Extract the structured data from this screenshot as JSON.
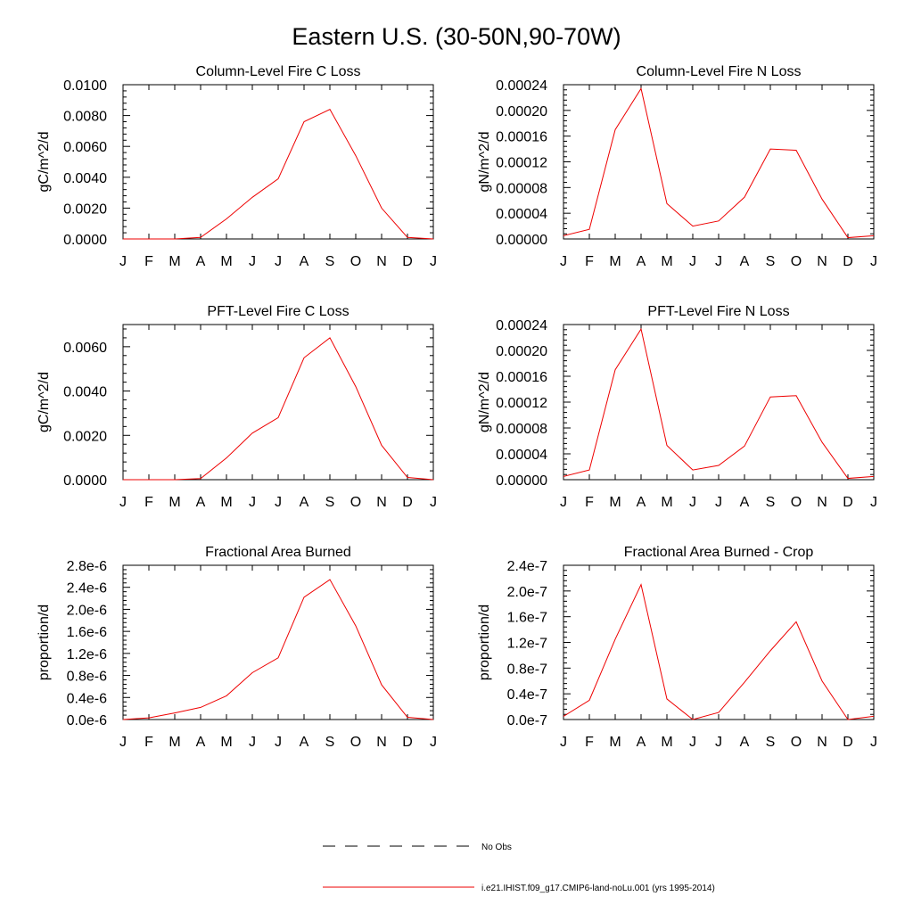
{
  "title": "Eastern U.S. (30-50N,90-70W)",
  "months": [
    "J",
    "F",
    "M",
    "A",
    "M",
    "J",
    "J",
    "A",
    "S",
    "O",
    "N",
    "D",
    "J"
  ],
  "line_color": "#ee0000",
  "legend": {
    "placement": "bottom-center",
    "entries": [
      {
        "label": "No Obs",
        "style": "dashed",
        "color": "#000000"
      },
      {
        "label": "i.e21.IHIST.f09_g17.CMIP6-land-noLu.001 (yrs 1995-2014)",
        "style": "solid",
        "color": "#ee0000"
      }
    ]
  },
  "chart_data": [
    {
      "type": "line",
      "title": "Column-Level Fire C Loss",
      "ylabel": "gC/m^2/d",
      "xlabel": "",
      "ylim": [
        0,
        0.01
      ],
      "yticks": [
        0,
        0.002,
        0.004,
        0.006,
        0.008,
        0.01
      ],
      "ytick_labels": [
        "0.0000",
        "0.0020",
        "0.0040",
        "0.0060",
        "0.0080",
        "0.0100"
      ],
      "categories": [
        "J",
        "F",
        "M",
        "A",
        "M",
        "J",
        "J",
        "A",
        "S",
        "O",
        "N",
        "D",
        "J"
      ],
      "series": [
        {
          "values": [
            0,
            0,
            0,
            0.0001,
            0.0013,
            0.0027,
            0.0039,
            0.0076,
            0.0084,
            0.0054,
            0.002,
            0.0001,
            0
          ]
        }
      ]
    },
    {
      "type": "line",
      "title": "Column-Level Fire N Loss",
      "ylabel": "gN/m^2/d",
      "xlabel": "",
      "ylim": [
        0,
        0.00024
      ],
      "yticks": [
        0,
        4e-05,
        8e-05,
        0.00012,
        0.00016,
        0.0002,
        0.00024
      ],
      "ytick_labels": [
        "0.00000",
        "0.00004",
        "0.00008",
        "0.00012",
        "0.00016",
        "0.00020",
        "0.00024"
      ],
      "categories": [
        "J",
        "F",
        "M",
        "A",
        "M",
        "J",
        "J",
        "A",
        "S",
        "O",
        "N",
        "D",
        "J"
      ],
      "series": [
        {
          "values": [
            5e-06,
            1.5e-05,
            0.00017,
            0.000234,
            5.5e-05,
            2e-05,
            2.8e-05,
            6.5e-05,
            0.00014,
            0.000138,
            6.2e-05,
            2e-06,
            5e-06
          ]
        }
      ]
    },
    {
      "type": "line",
      "title": "PFT-Level Fire C Loss",
      "ylabel": "gC/m^2/d",
      "xlabel": "",
      "ylim": [
        0,
        0.007
      ],
      "yticks": [
        0,
        0.002,
        0.004,
        0.006
      ],
      "ytick_labels": [
        "0.0000",
        "0.0020",
        "0.0040",
        "0.0060"
      ],
      "categories": [
        "J",
        "F",
        "M",
        "A",
        "M",
        "J",
        "J",
        "A",
        "S",
        "O",
        "N",
        "D",
        "J"
      ],
      "series": [
        {
          "values": [
            0,
            0,
            0,
            5e-05,
            0.00098,
            0.0021,
            0.0028,
            0.0055,
            0.0064,
            0.0042,
            0.00155,
            0.0001,
            0
          ]
        }
      ]
    },
    {
      "type": "line",
      "title": "PFT-Level Fire N Loss",
      "ylabel": "gN/m^2/d",
      "xlabel": "",
      "ylim": [
        0,
        0.00024
      ],
      "yticks": [
        0,
        4e-05,
        8e-05,
        0.00012,
        0.00016,
        0.0002,
        0.00024
      ],
      "ytick_labels": [
        "0.00000",
        "0.00004",
        "0.00008",
        "0.00012",
        "0.00016",
        "0.00020",
        "0.00024"
      ],
      "categories": [
        "J",
        "F",
        "M",
        "A",
        "M",
        "J",
        "J",
        "A",
        "S",
        "O",
        "N",
        "D",
        "J"
      ],
      "series": [
        {
          "values": [
            5e-06,
            1.5e-05,
            0.00017,
            0.000233,
            5.3e-05,
            1.5e-05,
            2.2e-05,
            5.2e-05,
            0.000128,
            0.00013,
            5.8e-05,
            2e-06,
            5e-06
          ]
        }
      ]
    },
    {
      "type": "line",
      "title": "Fractional Area Burned",
      "ylabel": "proportion/d",
      "xlabel": "",
      "ylim": [
        0,
        2.8e-06
      ],
      "yticks": [
        0,
        4e-07,
        8e-07,
        1.2e-06,
        1.6e-06,
        2e-06,
        2.4e-06,
        2.8e-06
      ],
      "ytick_labels": [
        "0.0e-6",
        "0.4e-6",
        "0.8e-6",
        "1.2e-6",
        "1.6e-6",
        "2.0e-6",
        "2.4e-6",
        "2.8e-6"
      ],
      "categories": [
        "J",
        "F",
        "M",
        "A",
        "M",
        "J",
        "J",
        "A",
        "S",
        "O",
        "N",
        "D",
        "J"
      ],
      "series": [
        {
          "values": [
            0,
            3e-08,
            1.2e-07,
            2.2e-07,
            4.3e-07,
            8.5e-07,
            1.12e-06,
            2.22e-06,
            2.54e-06,
            1.7e-06,
            6.3e-07,
            4e-08,
            0
          ]
        }
      ]
    },
    {
      "type": "line",
      "title": "Fractional Area Burned - Crop",
      "ylabel": "proportion/d",
      "xlabel": "",
      "ylim": [
        0,
        2.4e-07
      ],
      "yticks": [
        0,
        4e-08,
        8e-08,
        1.2e-07,
        1.6e-07,
        2e-07,
        2.4e-07
      ],
      "ytick_labels": [
        "0.0e-7",
        "0.4e-7",
        "0.8e-7",
        "1.2e-7",
        "1.6e-7",
        "2.0e-7",
        "2.4e-7"
      ],
      "categories": [
        "J",
        "F",
        "M",
        "A",
        "M",
        "J",
        "J",
        "A",
        "S",
        "O",
        "N",
        "D",
        "J"
      ],
      "series": [
        {
          "values": [
            5e-09,
            3e-08,
            1.25e-07,
            2.1e-07,
            3.2e-08,
            0,
            1.1e-08,
            5.8e-08,
            1.07e-07,
            1.52e-07,
            6e-08,
            0,
            5e-09
          ]
        }
      ]
    }
  ]
}
